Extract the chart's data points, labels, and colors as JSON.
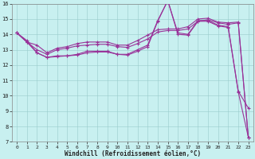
{
  "xlabel": "Windchill (Refroidissement éolien,°C)",
  "background_color": "#c8f0f0",
  "line_color": "#993399",
  "xlim": [
    -0.5,
    23.5
  ],
  "ylim": [
    7,
    16
  ],
  "xticks": [
    0,
    1,
    2,
    3,
    4,
    5,
    6,
    7,
    8,
    9,
    10,
    11,
    12,
    13,
    14,
    15,
    16,
    17,
    18,
    19,
    20,
    21,
    22,
    23
  ],
  "yticks": [
    7,
    8,
    9,
    10,
    11,
    12,
    13,
    14,
    15,
    16
  ],
  "line1": [
    14.1,
    13.6,
    12.8,
    12.5,
    12.6,
    12.6,
    12.7,
    12.9,
    12.9,
    12.9,
    12.7,
    12.7,
    13.0,
    13.3,
    14.9,
    16.2,
    14.1,
    14.0,
    14.9,
    14.9,
    14.6,
    14.5,
    10.3,
    9.2
  ],
  "line2": [
    14.1,
    13.5,
    12.8,
    12.5,
    12.55,
    12.6,
    12.65,
    12.8,
    12.85,
    12.85,
    12.7,
    12.65,
    12.9,
    13.2,
    14.85,
    16.2,
    14.0,
    13.95,
    14.85,
    14.85,
    14.55,
    14.45,
    10.25,
    7.3
  ],
  "line3": [
    14.1,
    13.5,
    13.0,
    12.7,
    13.0,
    13.1,
    13.25,
    13.3,
    13.35,
    13.35,
    13.2,
    13.15,
    13.4,
    13.7,
    14.15,
    14.25,
    14.25,
    14.35,
    14.85,
    14.95,
    14.75,
    14.65,
    14.75,
    7.3
  ],
  "line4": [
    14.1,
    13.5,
    13.3,
    12.8,
    13.1,
    13.2,
    13.4,
    13.5,
    13.5,
    13.5,
    13.3,
    13.3,
    13.6,
    13.95,
    14.3,
    14.35,
    14.35,
    14.5,
    15.0,
    15.05,
    14.8,
    14.75,
    14.8,
    7.3
  ]
}
